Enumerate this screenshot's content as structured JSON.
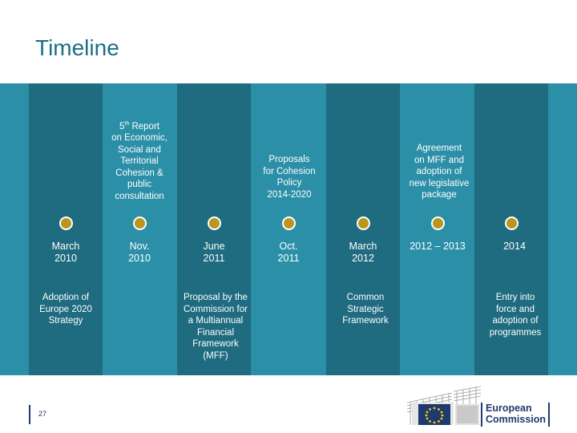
{
  "title": "Timeline",
  "page_number": "27",
  "logo_text": "European\nCommission",
  "colors": {
    "title": "#1b6f86",
    "dark_col": "#1f6b7f",
    "light_col": "#2b8fa7",
    "dot": "#b8961f",
    "ec_blue": "#1f3a6e"
  },
  "timeline": [
    {
      "date": "March\n2010",
      "above": "",
      "below": "Adoption of\nEurope 2020\nStrategy"
    },
    {
      "date": "Nov.\n2010",
      "above": "5th Report\non Economic,\nSocial and\nTerritorial\nCohesion &\npublic\nconsultation",
      "below": ""
    },
    {
      "date": "June\n2011",
      "above": "",
      "below": "Proposal by the\nCommission for\na Multiannual\nFinancial\nFramework\n(MFF)"
    },
    {
      "date": "Oct.\n2011",
      "above": "Proposals\nfor Cohesion\nPolicy\n2014-2020",
      "below": ""
    },
    {
      "date": "March\n2012",
      "above": "",
      "below": "Common\nStrategic\nFramework"
    },
    {
      "date": "2012 – 2013",
      "above": "Agreement\non MFF and\nadoption of\nnew legislative\npackage",
      "below": ""
    },
    {
      "date": "2014",
      "above": "",
      "below": "Entry into\nforce and\nadoption of\nprogrammes"
    }
  ]
}
